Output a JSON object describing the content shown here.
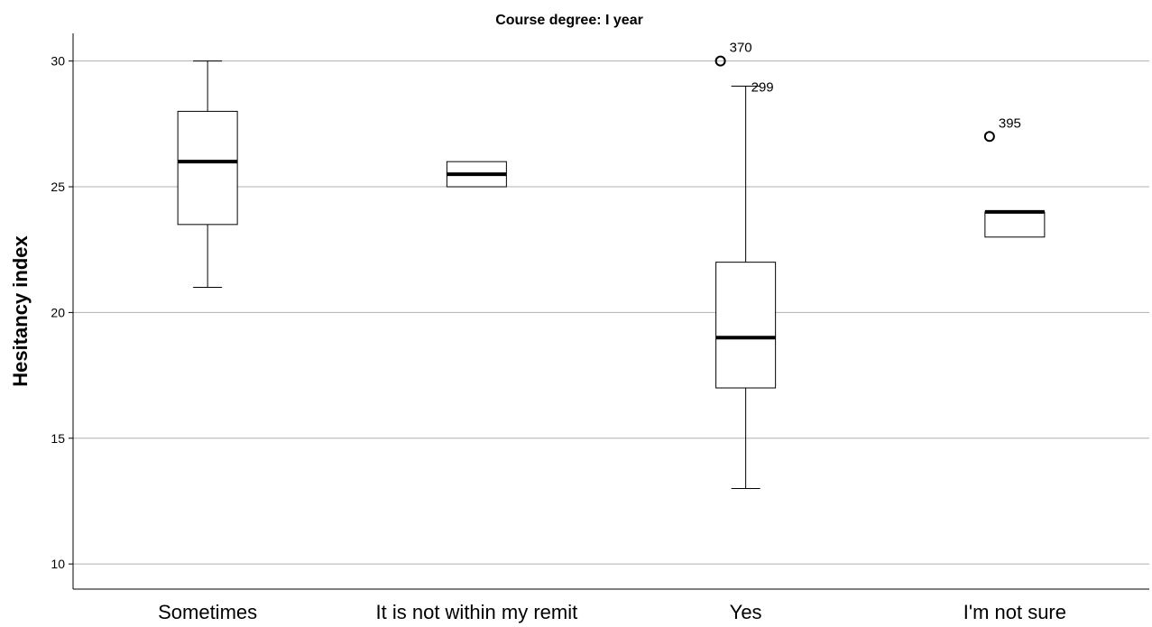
{
  "chart_data": {
    "type": "boxplot",
    "title": "Course degree: I year",
    "ylabel": "Hesitancy index",
    "xlabel": "",
    "ylim": [
      9,
      31.1
    ],
    "yticks": [
      10,
      15,
      20,
      25,
      30
    ],
    "grid": true,
    "categories": [
      "Sometimes",
      "It is not within my remit",
      "Yes",
      "I'm not sure"
    ],
    "boxes": [
      {
        "category": "Sometimes",
        "min": 21,
        "q1": 23.5,
        "median": 26,
        "q3": 28,
        "max": 30,
        "outliers": []
      },
      {
        "category": "It is not within my remit",
        "min": 25,
        "q1": 25,
        "median": 25.5,
        "q3": 26,
        "max": 26,
        "outliers": []
      },
      {
        "category": "Yes",
        "min": 13,
        "q1": 17,
        "median": 19,
        "q3": 22,
        "max": 29,
        "outliers": [
          {
            "value": 30,
            "label": "370"
          }
        ],
        "whisker_label": "299"
      },
      {
        "category": "I'm not sure",
        "min": 23,
        "q1": 23,
        "median": 24,
        "q3": 24,
        "max": 24,
        "outliers": [
          {
            "value": 27,
            "label": "395"
          }
        ]
      }
    ]
  }
}
